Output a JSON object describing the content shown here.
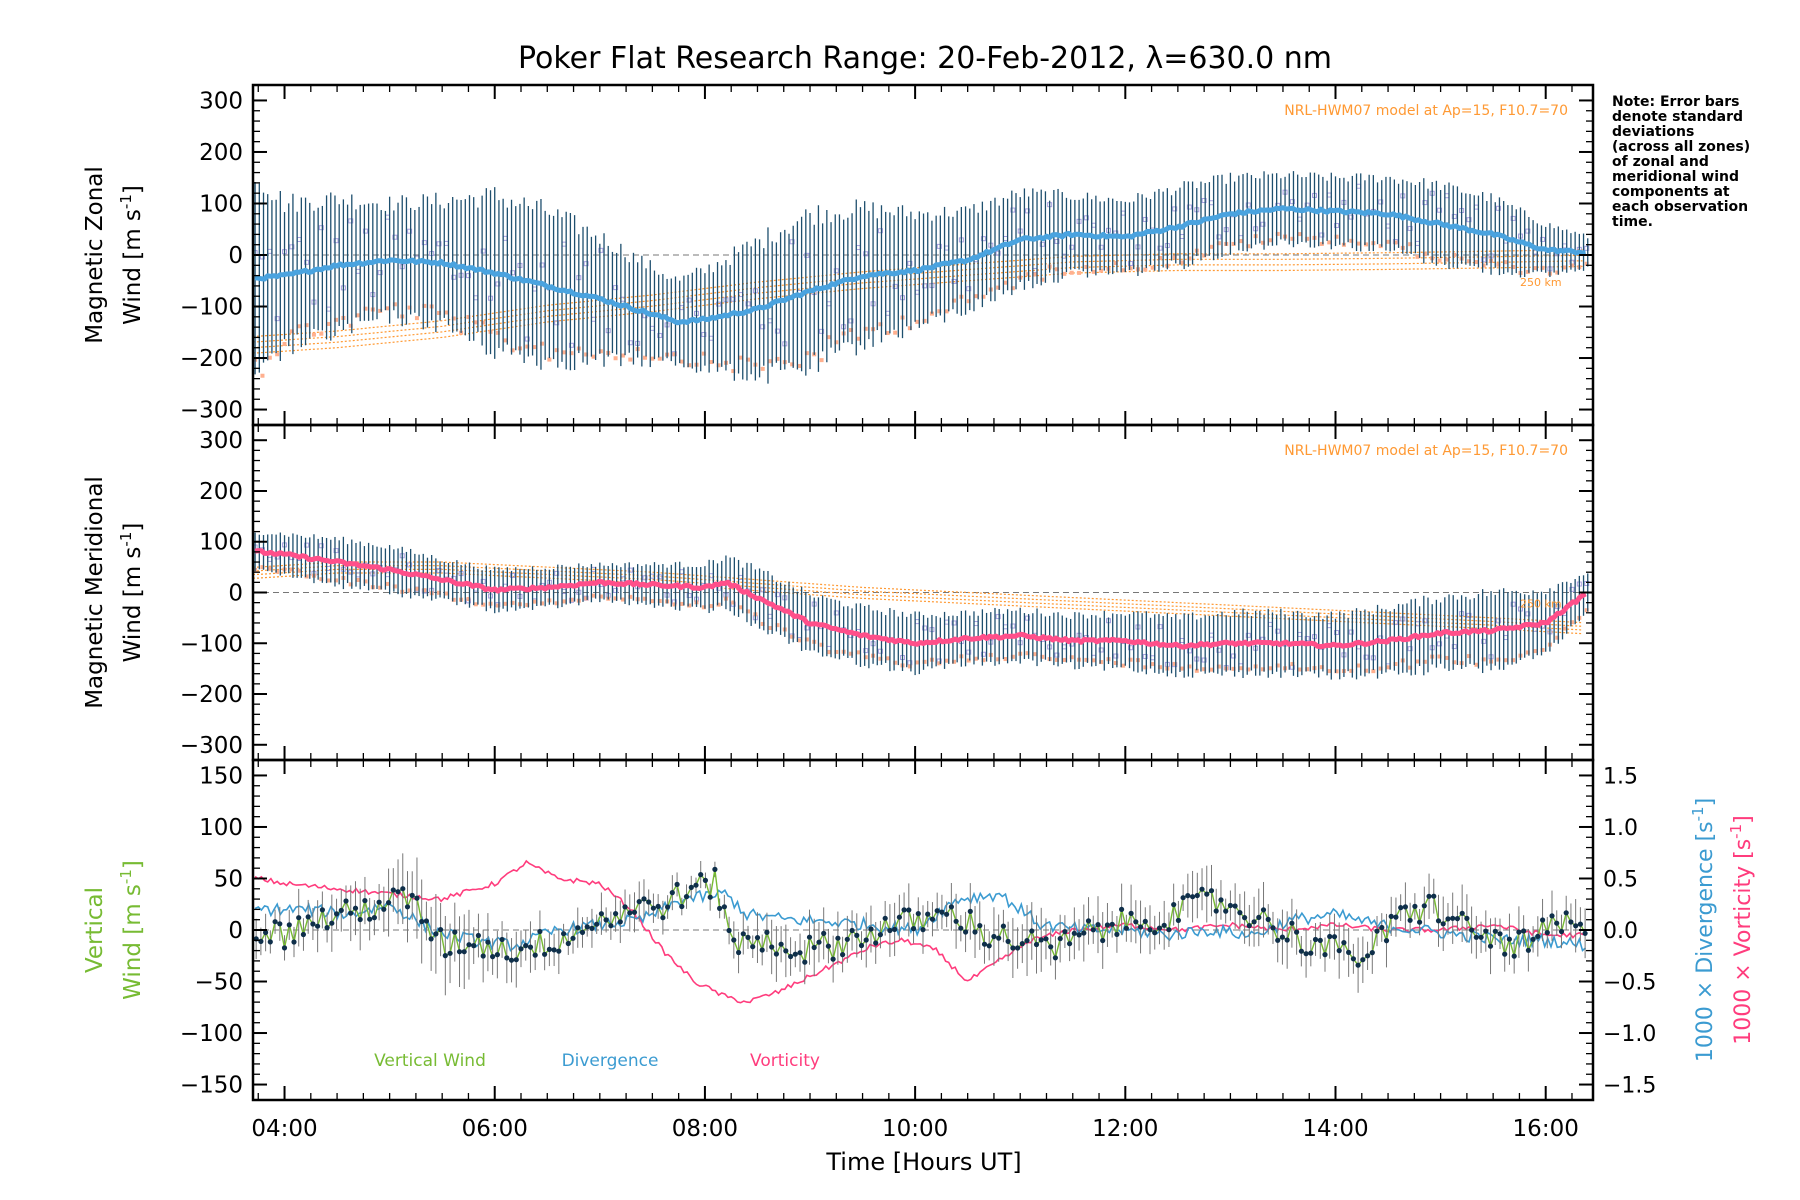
{
  "title": "Poker Flat Research Range: 20-Feb-2012, λ=630.0 nm",
  "note": [
    "Note: Error bars",
    "denote standard",
    "deviations",
    "(across all zones)",
    "of zonal and",
    "meridional wind",
    "components at",
    "each observation",
    "time."
  ],
  "colors": {
    "zonal_mean": "#4aa3df",
    "meridional_mean": "#ff4f8a",
    "vertical": "#77bb33",
    "divergence": "#3b9bd1",
    "vorticity": "#ff3c7d",
    "errorbar": "#1e4f6e",
    "model": "#ff9933",
    "scatter": "#a9a0e0",
    "model_points": "#ffb08f"
  },
  "chart_data": [
    {
      "type": "line",
      "panel": "zonal",
      "ylabel_line1": "Magnetic Zonal",
      "ylabel_line2": "Wind [m s",
      "ylabel_sup": "-1",
      "ylabel_close": "]",
      "ylim": [
        -330,
        330
      ],
      "yticks": [
        "300",
        "200",
        "100",
        "0",
        "−100",
        "−200",
        "−300"
      ],
      "ytick_values": [
        300,
        200,
        100,
        0,
        -100,
        -200,
        -300
      ],
      "model_label": "NRL-HWM07 model at Ap=15, F10.7=70",
      "model_alt_label": "250 km",
      "series": [
        {
          "role": "mean",
          "x": [
            3.75,
            4.0,
            4.5,
            5.0,
            5.5,
            6.0,
            6.5,
            7.0,
            7.5,
            7.75,
            8.0,
            8.5,
            9.0,
            9.5,
            10.0,
            10.5,
            11.0,
            11.5,
            12.0,
            12.5,
            13.0,
            13.5,
            14.0,
            14.5,
            15.0,
            15.5,
            16.0,
            16.4
          ],
          "y": [
            -45,
            -40,
            -20,
            -10,
            -15,
            -35,
            -60,
            -85,
            -115,
            -130,
            -125,
            -105,
            -70,
            -40,
            -30,
            -10,
            30,
            40,
            35,
            55,
            80,
            90,
            85,
            80,
            60,
            40,
            10,
            5
          ],
          "err": [
            200,
            140,
            130,
            110,
            120,
            150,
            145,
            120,
            90,
            80,
            95,
            130,
            150,
            130,
            110,
            95,
            90,
            75,
            70,
            75,
            70,
            65,
            65,
            70,
            75,
            70,
            50,
            30
          ]
        },
        {
          "role": "model",
          "x": [
            3.75,
            4.5,
            5.5,
            6.5,
            7.5,
            8.5,
            9.5,
            10.5,
            11.5,
            12.5,
            13.5,
            14.5,
            15.5,
            16.4
          ],
          "y": [
            -190,
            -180,
            -160,
            -130,
            -110,
            -85,
            -65,
            -50,
            -35,
            -30,
            -30,
            -28,
            -25,
            -22
          ]
        }
      ]
    },
    {
      "type": "line",
      "panel": "meridional",
      "ylabel_line1": "Magnetic Meridional",
      "ylabel_line2": "Wind [m s",
      "ylabel_sup": "-1",
      "ylabel_close": "]",
      "ylim": [
        -330,
        330
      ],
      "yticks": [
        "300",
        "200",
        "100",
        "0",
        "−100",
        "−200",
        "−300"
      ],
      "ytick_values": [
        300,
        200,
        100,
        0,
        -100,
        -200,
        -300
      ],
      "model_label": "NRL-HWM07 model at Ap=15, F10.7=70",
      "model_alt_label": "250 km",
      "series": [
        {
          "role": "mean",
          "x": [
            3.75,
            4.0,
            4.5,
            5.0,
            5.5,
            6.0,
            6.5,
            7.0,
            7.5,
            8.0,
            8.2,
            8.5,
            9.0,
            9.5,
            10.0,
            10.5,
            11.0,
            11.5,
            12.0,
            12.5,
            13.0,
            13.5,
            14.0,
            14.5,
            15.0,
            15.5,
            16.0,
            16.4
          ],
          "y": [
            80,
            75,
            60,
            45,
            25,
            5,
            10,
            20,
            15,
            10,
            20,
            -10,
            -60,
            -85,
            -100,
            -90,
            -85,
            -95,
            -95,
            -105,
            -100,
            -100,
            -105,
            -95,
            -80,
            -75,
            -60,
            0
          ],
          "err": [
            40,
            40,
            45,
            45,
            40,
            40,
            40,
            35,
            40,
            45,
            50,
            55,
            55,
            55,
            55,
            50,
            50,
            50,
            55,
            55,
            60,
            60,
            60,
            65,
            70,
            75,
            65,
            40
          ]
        },
        {
          "role": "model",
          "x": [
            3.75,
            4.5,
            5.5,
            6.5,
            7.5,
            8.5,
            9.5,
            10.5,
            11.5,
            12.5,
            13.5,
            14.5,
            15.5,
            16.4
          ],
          "y": [
            50,
            60,
            60,
            50,
            40,
            25,
            10,
            0,
            -10,
            -20,
            -30,
            -40,
            -50,
            -60
          ]
        }
      ]
    },
    {
      "type": "line",
      "panel": "vertical",
      "ylabel_line1": "Vertical",
      "ylabel_line2": "Wind [m s",
      "ylabel_sup": "-1",
      "ylabel_close": "]",
      "ylim": [
        -165,
        165
      ],
      "yticks": [
        "150",
        "100",
        "50",
        "0",
        "−50",
        "−100",
        "−150"
      ],
      "ytick_values": [
        150,
        100,
        50,
        0,
        -50,
        -100,
        -150
      ],
      "y2lim": [
        -1.65,
        1.65
      ],
      "y2ticks": [
        "1.5",
        "1.0",
        "0.5",
        "0.0",
        "−0.5",
        "−1.0",
        "−1.5"
      ],
      "y2tick_values": [
        1.5,
        1.0,
        0.5,
        0.0,
        -0.5,
        -1.0,
        -1.5
      ],
      "y2label_div": "1000 × Divergence [s",
      "y2label_vort": "1000 × Vorticity [s",
      "y2label_sup": "-1",
      "y2label_close": "]",
      "legend": [
        "Vertical Wind",
        "Divergence",
        "Vorticity"
      ],
      "series": [
        {
          "name": "Vertical Wind",
          "x": [
            3.75,
            4.0,
            4.3,
            4.6,
            4.9,
            5.2,
            5.5,
            5.8,
            6.1,
            6.4,
            6.7,
            7.0,
            7.3,
            7.6,
            7.9,
            8.1,
            8.3,
            8.6,
            8.9,
            9.2,
            9.5,
            9.8,
            10.1,
            10.4,
            10.7,
            11.0,
            11.3,
            11.6,
            11.9,
            12.2,
            12.5,
            12.8,
            13.1,
            13.4,
            13.7,
            14.0,
            14.3,
            14.6,
            14.9,
            15.2,
            15.5,
            15.8,
            16.1,
            16.4
          ],
          "y": [
            0,
            -5,
            10,
            15,
            25,
            30,
            -15,
            -10,
            -20,
            -15,
            -5,
            10,
            20,
            25,
            40,
            45,
            -15,
            -10,
            -20,
            -15,
            -5,
            5,
            10,
            15,
            -5,
            -10,
            -20,
            -5,
            5,
            10,
            15,
            30,
            20,
            5,
            -10,
            -20,
            -25,
            10,
            25,
            5,
            -10,
            -15,
            5,
            0
          ],
          "err": [
            15,
            20,
            20,
            20,
            25,
            30,
            30,
            25,
            20,
            20,
            15,
            15,
            15,
            15,
            10,
            10,
            15,
            20,
            20,
            20,
            20,
            20,
            20,
            20,
            20,
            25,
            25,
            20,
            20,
            20,
            20,
            20,
            20,
            20,
            20,
            20,
            20,
            20,
            20,
            20,
            20,
            20,
            20,
            20
          ]
        },
        {
          "name": "Divergence",
          "x": [
            3.75,
            4.2,
            4.6,
            5.0,
            5.4,
            5.8,
            6.2,
            6.6,
            7.0,
            7.4,
            7.8,
            8.2,
            8.4,
            8.8,
            9.2,
            9.6,
            10.0,
            10.4,
            10.8,
            11.2,
            11.6,
            12.0,
            12.4,
            12.8,
            13.2,
            13.6,
            14.0,
            14.4,
            14.8,
            15.2,
            15.6,
            16.0,
            16.4
          ],
          "y": [
            0.2,
            0.2,
            0.15,
            0.25,
            0.0,
            -0.1,
            -0.15,
            0.0,
            0.05,
            0.1,
            0.3,
            0.35,
            0.15,
            0.1,
            0.08,
            0.05,
            0.0,
            0.3,
            0.35,
            0.05,
            0.0,
            0.0,
            -0.05,
            0.0,
            -0.05,
            0.1,
            0.15,
            0.05,
            0.0,
            -0.05,
            -0.1,
            -0.1,
            -0.15
          ]
        },
        {
          "name": "Vorticity",
          "x": [
            3.75,
            4.0,
            4.5,
            5.0,
            5.5,
            6.0,
            6.3,
            6.6,
            7.0,
            7.3,
            7.6,
            7.9,
            8.2,
            8.4,
            8.7,
            9.0,
            9.3,
            9.6,
            9.9,
            10.2,
            10.5,
            10.8,
            11.1,
            11.5,
            12.0,
            12.5,
            13.0,
            13.5,
            14.0,
            14.5,
            15.0,
            15.5,
            16.0,
            16.4
          ],
          "y": [
            0.5,
            0.45,
            0.4,
            0.35,
            0.3,
            0.45,
            0.65,
            0.5,
            0.45,
            0.2,
            -0.2,
            -0.5,
            -0.65,
            -0.7,
            -0.6,
            -0.45,
            -0.3,
            -0.15,
            -0.1,
            -0.2,
            -0.5,
            -0.3,
            -0.1,
            0.0,
            0.05,
            0.0,
            0.05,
            0.0,
            0.05,
            0.0,
            0.0,
            0.05,
            -0.05,
            -0.05
          ]
        }
      ]
    }
  ],
  "xaxis": {
    "label": "Time [Hours UT]",
    "xlim": [
      3.7,
      16.45
    ],
    "ticks": [
      "04:00",
      "06:00",
      "08:00",
      "10:00",
      "12:00",
      "14:00",
      "16:00"
    ],
    "tick_values": [
      4,
      6,
      8,
      10,
      12,
      14,
      16
    ]
  }
}
